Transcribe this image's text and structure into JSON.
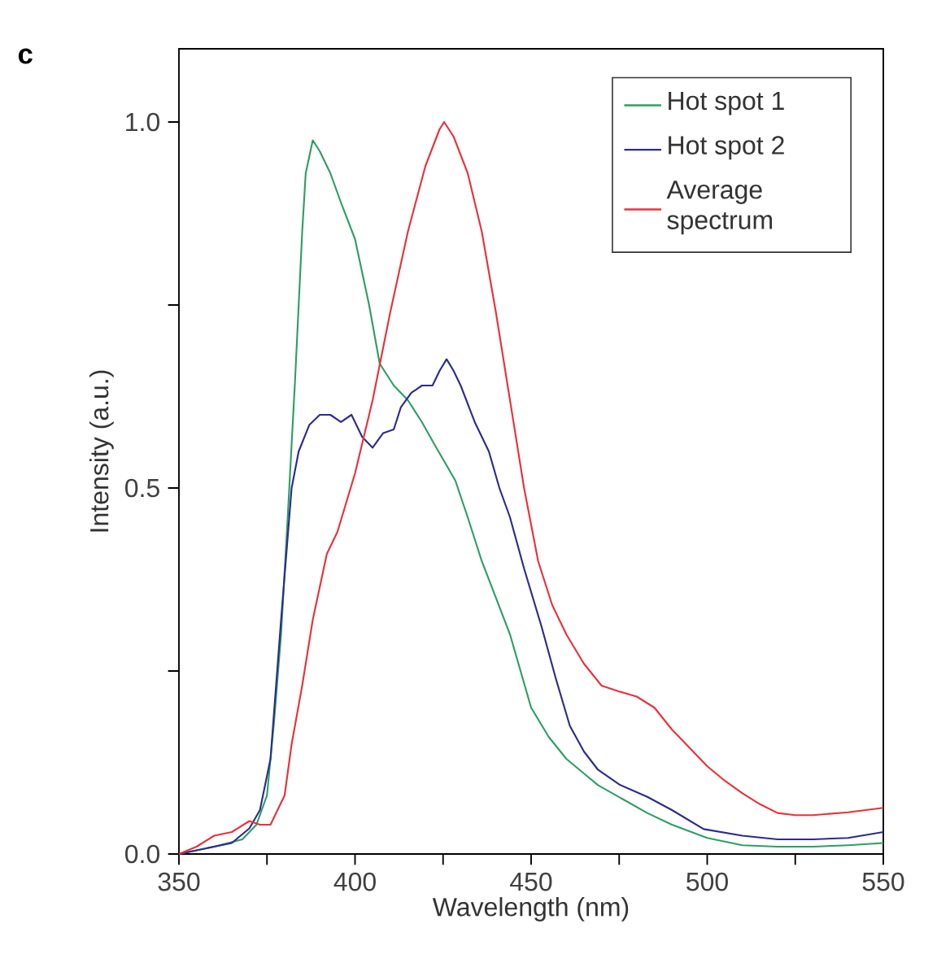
{
  "chart_data": {
    "type": "line",
    "xlabel": "Wavelength (nm)",
    "ylabel": "Intensity (a.u.)",
    "annotations": [
      "c"
    ],
    "xlim": [
      350,
      550
    ],
    "ylim": [
      0,
      1.1
    ],
    "xticks": [
      350,
      {
        "value": 375,
        "label": null
      },
      400,
      {
        "value": 425,
        "label": null
      },
      450,
      {
        "value": 475,
        "label": null
      },
      500,
      {
        "value": 525,
        "label": null
      },
      550
    ],
    "yticks": [
      {
        "value": 0,
        "label": "0.0"
      },
      {
        "value": 0.25,
        "label": null
      },
      0.5,
      {
        "value": 0.75,
        "label": null
      },
      {
        "value": 1,
        "label": "1.0"
      }
    ],
    "legend": "top right",
    "grid": false,
    "marker": "none",
    "line_style": "solid",
    "series": [
      {
        "name": "Hot spot 1",
        "color": "#2e9e66",
        "x": [
          350,
          360,
          368,
          372,
          375,
          377,
          379,
          381,
          383,
          385,
          386,
          388,
          390,
          393,
          396,
          400,
          404,
          407,
          411,
          415,
          419,
          422.5,
          428.5,
          432,
          436,
          440,
          444,
          450,
          455,
          460,
          465,
          469,
          476,
          483,
          490,
          500,
          510,
          520,
          530,
          540,
          550
        ],
        "values": [
          0,
          0.01,
          0.02,
          0.04,
          0.08,
          0.18,
          0.3,
          0.47,
          0.65,
          0.85,
          0.93,
          0.975,
          0.96,
          0.93,
          0.89,
          0.84,
          0.75,
          0.67,
          0.64,
          0.62,
          0.59,
          0.56,
          0.51,
          0.46,
          0.4,
          0.35,
          0.3,
          0.2,
          0.16,
          0.13,
          0.11,
          0.094,
          0.075,
          0.056,
          0.04,
          0.022,
          0.012,
          0.01,
          0.01,
          0.012,
          0.015
        ]
      },
      {
        "name": "Hot spot 2",
        "color": "#2c2c8c",
        "x": [
          350,
          365,
          370,
          373,
          376,
          379,
          382,
          384,
          387,
          390,
          393,
          396,
          399,
          402,
          405,
          408,
          411,
          413,
          416,
          419,
          422,
          424,
          426,
          428,
          430,
          434,
          438,
          441,
          444,
          448,
          453,
          457,
          461,
          465,
          469,
          475,
          483,
          490,
          499,
          510,
          520,
          530,
          540,
          550
        ],
        "values": [
          0,
          0.015,
          0.035,
          0.06,
          0.13,
          0.32,
          0.5,
          0.55,
          0.586,
          0.6,
          0.6,
          0.59,
          0.6,
          0.57,
          0.555,
          0.575,
          0.58,
          0.61,
          0.63,
          0.64,
          0.64,
          0.66,
          0.676,
          0.66,
          0.64,
          0.59,
          0.55,
          0.5,
          0.46,
          0.39,
          0.31,
          0.24,
          0.175,
          0.14,
          0.115,
          0.095,
          0.078,
          0.06,
          0.034,
          0.025,
          0.02,
          0.02,
          0.022,
          0.03
        ]
      },
      {
        "name": "Average spectrum",
        "color": "#e8323c",
        "x": [
          350,
          355,
          360,
          365,
          370,
          373,
          376,
          378,
          380,
          382,
          385,
          388,
          392,
          395,
          400,
          405,
          410,
          415,
          420,
          424,
          425.3,
          428,
          432,
          436,
          440,
          444,
          448,
          452,
          456,
          460,
          465,
          470,
          475,
          480,
          485,
          490,
          495,
          500,
          505,
          510,
          515,
          520,
          525,
          530,
          540,
          550
        ],
        "values": [
          0,
          0.01,
          0.025,
          0.03,
          0.045,
          0.04,
          0.04,
          0.06,
          0.08,
          0.15,
          0.23,
          0.32,
          0.41,
          0.44,
          0.52,
          0.62,
          0.74,
          0.85,
          0.94,
          0.99,
          1.0,
          0.98,
          0.93,
          0.85,
          0.74,
          0.62,
          0.5,
          0.4,
          0.34,
          0.3,
          0.26,
          0.23,
          0.222,
          0.215,
          0.2,
          0.17,
          0.145,
          0.12,
          0.1,
          0.083,
          0.068,
          0.056,
          0.053,
          0.053,
          0.057,
          0.063
        ]
      }
    ]
  }
}
